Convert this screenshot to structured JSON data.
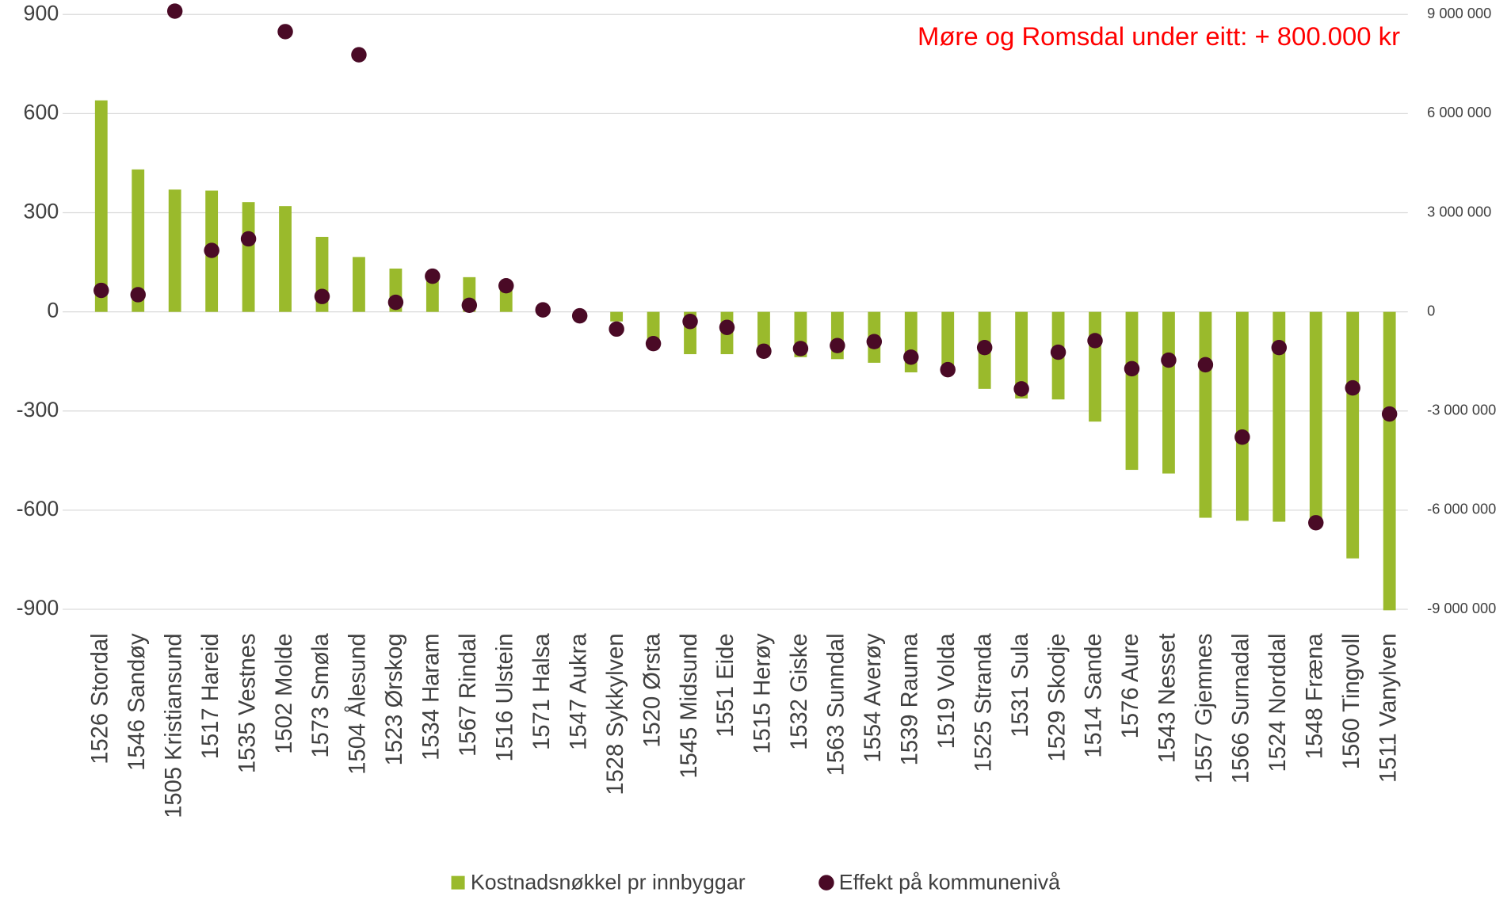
{
  "chart_data": {
    "type": "bar",
    "annotation": "Møre og Romsdal under eitt: + 800.000 kr",
    "annotation_color": "#ff0000",
    "categories": [
      "1526 Stordal",
      "1546 Sandøy",
      "1505 Kristiansund",
      "1517 Hareid",
      "1535 Vestnes",
      "1502 Molde",
      "1573 Smøla",
      "1504 Ålesund",
      "1523 Ørskog",
      "1534 Haram",
      "1567 Rindal",
      "1516 Ulstein",
      "1571 Halsa",
      "1547 Aukra",
      "1528 Sykkylven",
      "1520 Ørsta",
      "1545 Midsund",
      "1551 Eide",
      "1515 Herøy",
      "1532 Giske",
      "1563 Sunndal",
      "1554 Averøy",
      "1539 Rauma",
      "1519 Volda",
      "1525 Stranda",
      "1531 Sula",
      "1529 Skodje",
      "1514 Sande",
      "1576 Aure",
      "1543 Nesset",
      "1557 Gjemnes",
      "1566 Surnadal",
      "1524 Norddal",
      "1548 Fræna",
      "1560 Tingvoll",
      "1511 Vanylven"
    ],
    "series": [
      {
        "name": "Kostnadsnøkkel pr innbyggar",
        "type": "bar",
        "color": "#9aba2c",
        "values": [
          640,
          431,
          370,
          367,
          332,
          320,
          227,
          166,
          131,
          110,
          105,
          85,
          5,
          -3,
          -29,
          -90,
          -128,
          -128,
          -122,
          -137,
          -143,
          -154,
          -183,
          -185,
          -233,
          -262,
          -265,
          -332,
          -478,
          -489,
          -623,
          -632,
          -635,
          -629,
          -746,
          -903
        ]
      },
      {
        "name": "Effekt på kommunenivå",
        "type": "scatter",
        "axis": "y2",
        "color": "#4a0a26",
        "values": [
          650000,
          520000,
          9100000,
          1860000,
          2210000,
          8480000,
          466000,
          7780000,
          290000,
          1080000,
          200000,
          790000,
          60000,
          -120000,
          -520000,
          -960000,
          -290000,
          -470000,
          -1190000,
          -1110000,
          -1020000,
          -900000,
          -1370000,
          -1750000,
          -1080000,
          -2330000,
          -1220000,
          -870000,
          -1720000,
          -1460000,
          -1600000,
          -3790000,
          -1080000,
          -6380000,
          -2300000,
          -3090000
        ]
      }
    ],
    "ylim": [
      -900,
      900
    ],
    "yticks": [
      -900,
      -600,
      -300,
      0,
      300,
      600,
      900
    ],
    "y2lim": [
      -9000000,
      9000000
    ],
    "y2ticks": [
      {
        "value": -9000000,
        "label": "-9 000 000"
      },
      {
        "value": -6000000,
        "label": "-6 000 000"
      },
      {
        "value": -3000000,
        "label": "-3 000 000"
      },
      0,
      {
        "value": 3000000,
        "label": "3 000 000"
      },
      {
        "value": 6000000,
        "label": "6 000 000"
      },
      {
        "value": 9000000,
        "label": "9 000 000"
      }
    ],
    "grid": true
  }
}
